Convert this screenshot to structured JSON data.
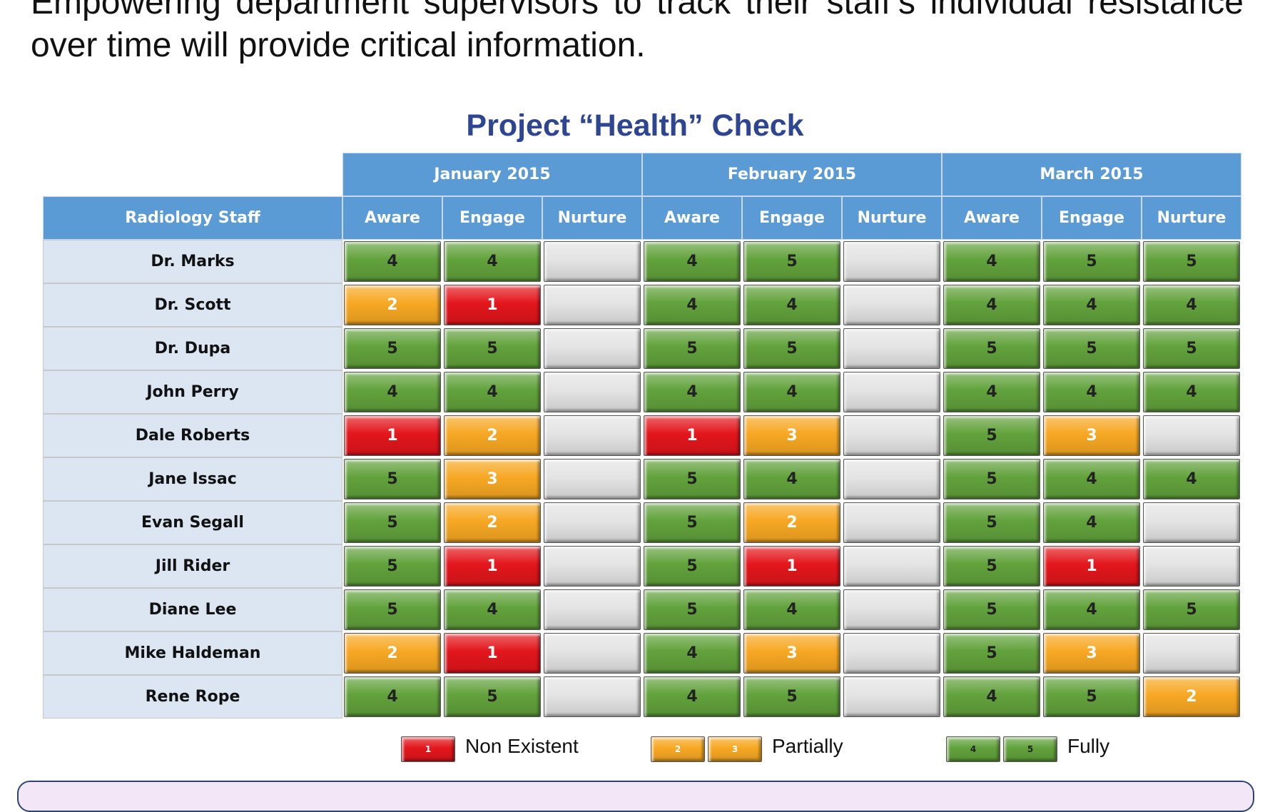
{
  "paragraph": "Empowering department supervisors to track their staff’s individual resistance over time will provide critical information.",
  "table": {
    "title": "Project “Health” Check",
    "staff_header": "Radiology Staff",
    "months": [
      "January 2015",
      "February 2015",
      "March 2015"
    ],
    "subheaders": [
      "Aware",
      "Engage",
      "Nurture"
    ],
    "rows": [
      {
        "name": "Dr. Marks",
        "scores": [
          4,
          4,
          null,
          4,
          5,
          null,
          4,
          5,
          5
        ]
      },
      {
        "name": "Dr. Scott",
        "scores": [
          2,
          1,
          null,
          4,
          4,
          null,
          4,
          4,
          4
        ]
      },
      {
        "name": "Dr. Dupa",
        "scores": [
          5,
          5,
          null,
          5,
          5,
          null,
          5,
          5,
          5
        ]
      },
      {
        "name": "John Perry",
        "scores": [
          4,
          4,
          null,
          4,
          4,
          null,
          4,
          4,
          4
        ]
      },
      {
        "name": "Dale Roberts",
        "scores": [
          1,
          2,
          null,
          1,
          3,
          null,
          5,
          3,
          null
        ]
      },
      {
        "name": "Jane Issac",
        "scores": [
          5,
          3,
          null,
          5,
          4,
          null,
          5,
          4,
          4
        ]
      },
      {
        "name": "Evan Segall",
        "scores": [
          5,
          2,
          null,
          5,
          2,
          null,
          5,
          4,
          null
        ]
      },
      {
        "name": "Jill Rider",
        "scores": [
          5,
          1,
          null,
          5,
          1,
          null,
          5,
          1,
          null
        ]
      },
      {
        "name": "Diane Lee",
        "scores": [
          5,
          4,
          null,
          5,
          4,
          null,
          5,
          4,
          5
        ]
      },
      {
        "name": "Mike Haldeman",
        "scores": [
          2,
          1,
          null,
          4,
          3,
          null,
          5,
          3,
          null
        ]
      },
      {
        "name": "Rene Rope",
        "scores": [
          4,
          5,
          null,
          4,
          5,
          null,
          4,
          5,
          2
        ]
      }
    ]
  },
  "legend": {
    "items": [
      {
        "label": "Non Existent",
        "values": [
          1
        ],
        "color": "#e3161c"
      },
      {
        "label": "Partially",
        "values": [
          2,
          3
        ],
        "color": "#f7a823"
      },
      {
        "label": "Fully",
        "values": [
          4,
          5
        ],
        "color": "#62a23c"
      }
    ]
  }
}
